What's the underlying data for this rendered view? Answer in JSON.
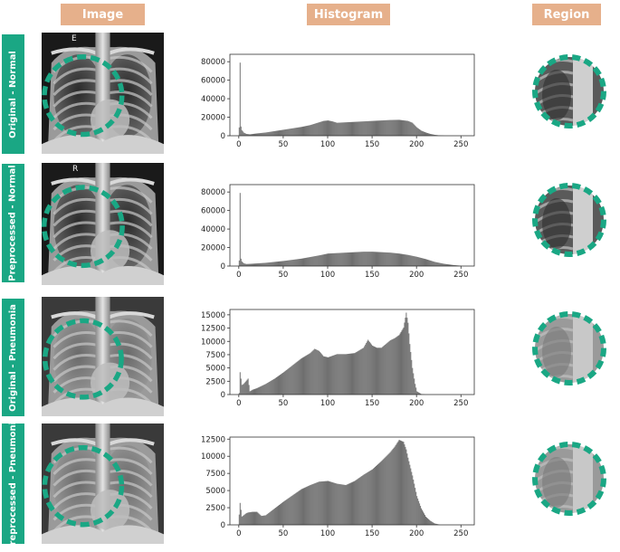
{
  "headers": {
    "image": "Image",
    "histogram": "Histogram",
    "region": "Region"
  },
  "rows": [
    {
      "label": "Original - Normal",
      "marker": "E",
      "type": "normal"
    },
    {
      "label": "Preprocessed - Normal",
      "marker": "R",
      "type": "normal"
    },
    {
      "label": "Original - Pneumonia",
      "marker": "",
      "type": "pneumonia"
    },
    {
      "label": "Preprocessed - Pneumonia",
      "marker": "",
      "type": "pneumonia"
    }
  ],
  "colors": {
    "header": "#e6b08b",
    "row_label": "#1aa784",
    "circle": "#1aa784",
    "bars": "#6e6e6e"
  },
  "chart_data": [
    {
      "type": "bar",
      "xlim": [
        -10,
        265
      ],
      "ylim": [
        0,
        88000
      ],
      "xticks": [
        "0",
        "50",
        "100",
        "150",
        "200",
        "250"
      ],
      "yticks": [
        "0",
        "20000",
        "40000",
        "60000",
        "80000"
      ],
      "xtick_values": [
        0,
        50,
        100,
        150,
        200,
        250
      ],
      "ytick_values": [
        0,
        20000,
        40000,
        60000,
        80000
      ],
      "x": [
        0,
        1,
        2,
        3,
        5,
        8,
        12,
        20,
        30,
        40,
        50,
        60,
        70,
        80,
        90,
        95,
        100,
        105,
        110,
        120,
        130,
        140,
        150,
        160,
        170,
        180,
        190,
        195,
        200,
        205,
        210,
        215,
        220,
        225,
        230
      ],
      "values": [
        9000,
        79000,
        10000,
        6000,
        3500,
        2000,
        1500,
        2500,
        3500,
        5000,
        6500,
        8000,
        9500,
        11500,
        14500,
        16000,
        16500,
        15500,
        14000,
        14500,
        15000,
        15500,
        16000,
        16500,
        17000,
        17200,
        16000,
        14000,
        9000,
        5500,
        3500,
        2000,
        1000,
        400,
        100
      ]
    },
    {
      "type": "bar",
      "xlim": [
        -10,
        265
      ],
      "ylim": [
        0,
        88000
      ],
      "xticks": [
        "0",
        "50",
        "100",
        "150",
        "200",
        "250"
      ],
      "yticks": [
        "0",
        "20000",
        "40000",
        "60000",
        "80000"
      ],
      "xtick_values": [
        0,
        50,
        100,
        150,
        200,
        250
      ],
      "ytick_values": [
        0,
        20000,
        40000,
        60000,
        80000
      ],
      "x": [
        0,
        1,
        2,
        3,
        5,
        8,
        15,
        30,
        50,
        70,
        90,
        100,
        110,
        120,
        130,
        140,
        150,
        160,
        170,
        180,
        190,
        200,
        210,
        220,
        230,
        240,
        250
      ],
      "values": [
        6000,
        79000,
        8000,
        5000,
        3000,
        2200,
        2500,
        3500,
        5500,
        8000,
        11500,
        13500,
        14000,
        14500,
        15000,
        15500,
        15500,
        15000,
        14500,
        13500,
        12000,
        10000,
        7500,
        4500,
        2500,
        1200,
        300
      ]
    },
    {
      "type": "bar",
      "xlim": [
        -10,
        265
      ],
      "ylim": [
        0,
        16000
      ],
      "xticks": [
        "0",
        "50",
        "100",
        "150",
        "200",
        "250"
      ],
      "yticks": [
        "0",
        "2500",
        "5000",
        "7500",
        "10000",
        "12500",
        "15000"
      ],
      "xtick_values": [
        0,
        50,
        100,
        150,
        200,
        250
      ],
      "ytick_values": [
        0,
        2500,
        5000,
        7500,
        10000,
        12500,
        15000
      ],
      "x": [
        0,
        1,
        3,
        5,
        8,
        10,
        12,
        15,
        20,
        30,
        40,
        50,
        60,
        70,
        80,
        85,
        90,
        95,
        100,
        110,
        120,
        130,
        140,
        145,
        150,
        155,
        160,
        165,
        170,
        175,
        180,
        185,
        188,
        190,
        192,
        195,
        198,
        200,
        205,
        210
      ],
      "values": [
        300,
        4200,
        1800,
        2000,
        2600,
        3000,
        600,
        900,
        1200,
        2000,
        3000,
        4200,
        5500,
        6800,
        7800,
        8600,
        8200,
        7200,
        7000,
        7600,
        7600,
        7800,
        8800,
        10300,
        9200,
        8800,
        8800,
        9500,
        10200,
        10600,
        11200,
        12600,
        15400,
        13500,
        9500,
        5000,
        2000,
        600,
        100,
        0
      ]
    },
    {
      "type": "bar",
      "xlim": [
        -10,
        265
      ],
      "ylim": [
        0,
        12800
      ],
      "xticks": [
        "0",
        "50",
        "100",
        "150",
        "200",
        "250"
      ],
      "yticks": [
        "0",
        "2500",
        "5000",
        "7500",
        "10000",
        "12500"
      ],
      "xtick_values": [
        0,
        50,
        100,
        150,
        200,
        250
      ],
      "ytick_values": [
        0,
        2500,
        5000,
        7500,
        10000,
        12500
      ],
      "x": [
        0,
        1,
        3,
        5,
        8,
        10,
        15,
        20,
        25,
        30,
        40,
        50,
        60,
        70,
        80,
        90,
        100,
        110,
        120,
        130,
        140,
        150,
        160,
        170,
        175,
        180,
        185,
        188,
        190,
        195,
        200,
        205,
        210,
        215,
        220,
        225
      ],
      "values": [
        1500,
        3200,
        1200,
        1400,
        1700,
        1800,
        1900,
        1900,
        1300,
        1400,
        2400,
        3400,
        4300,
        5200,
        5800,
        6300,
        6400,
        6000,
        5800,
        6400,
        7300,
        8100,
        9300,
        10600,
        11400,
        12400,
        12100,
        11000,
        9800,
        7200,
        4200,
        2400,
        1200,
        600,
        200,
        50
      ]
    }
  ]
}
